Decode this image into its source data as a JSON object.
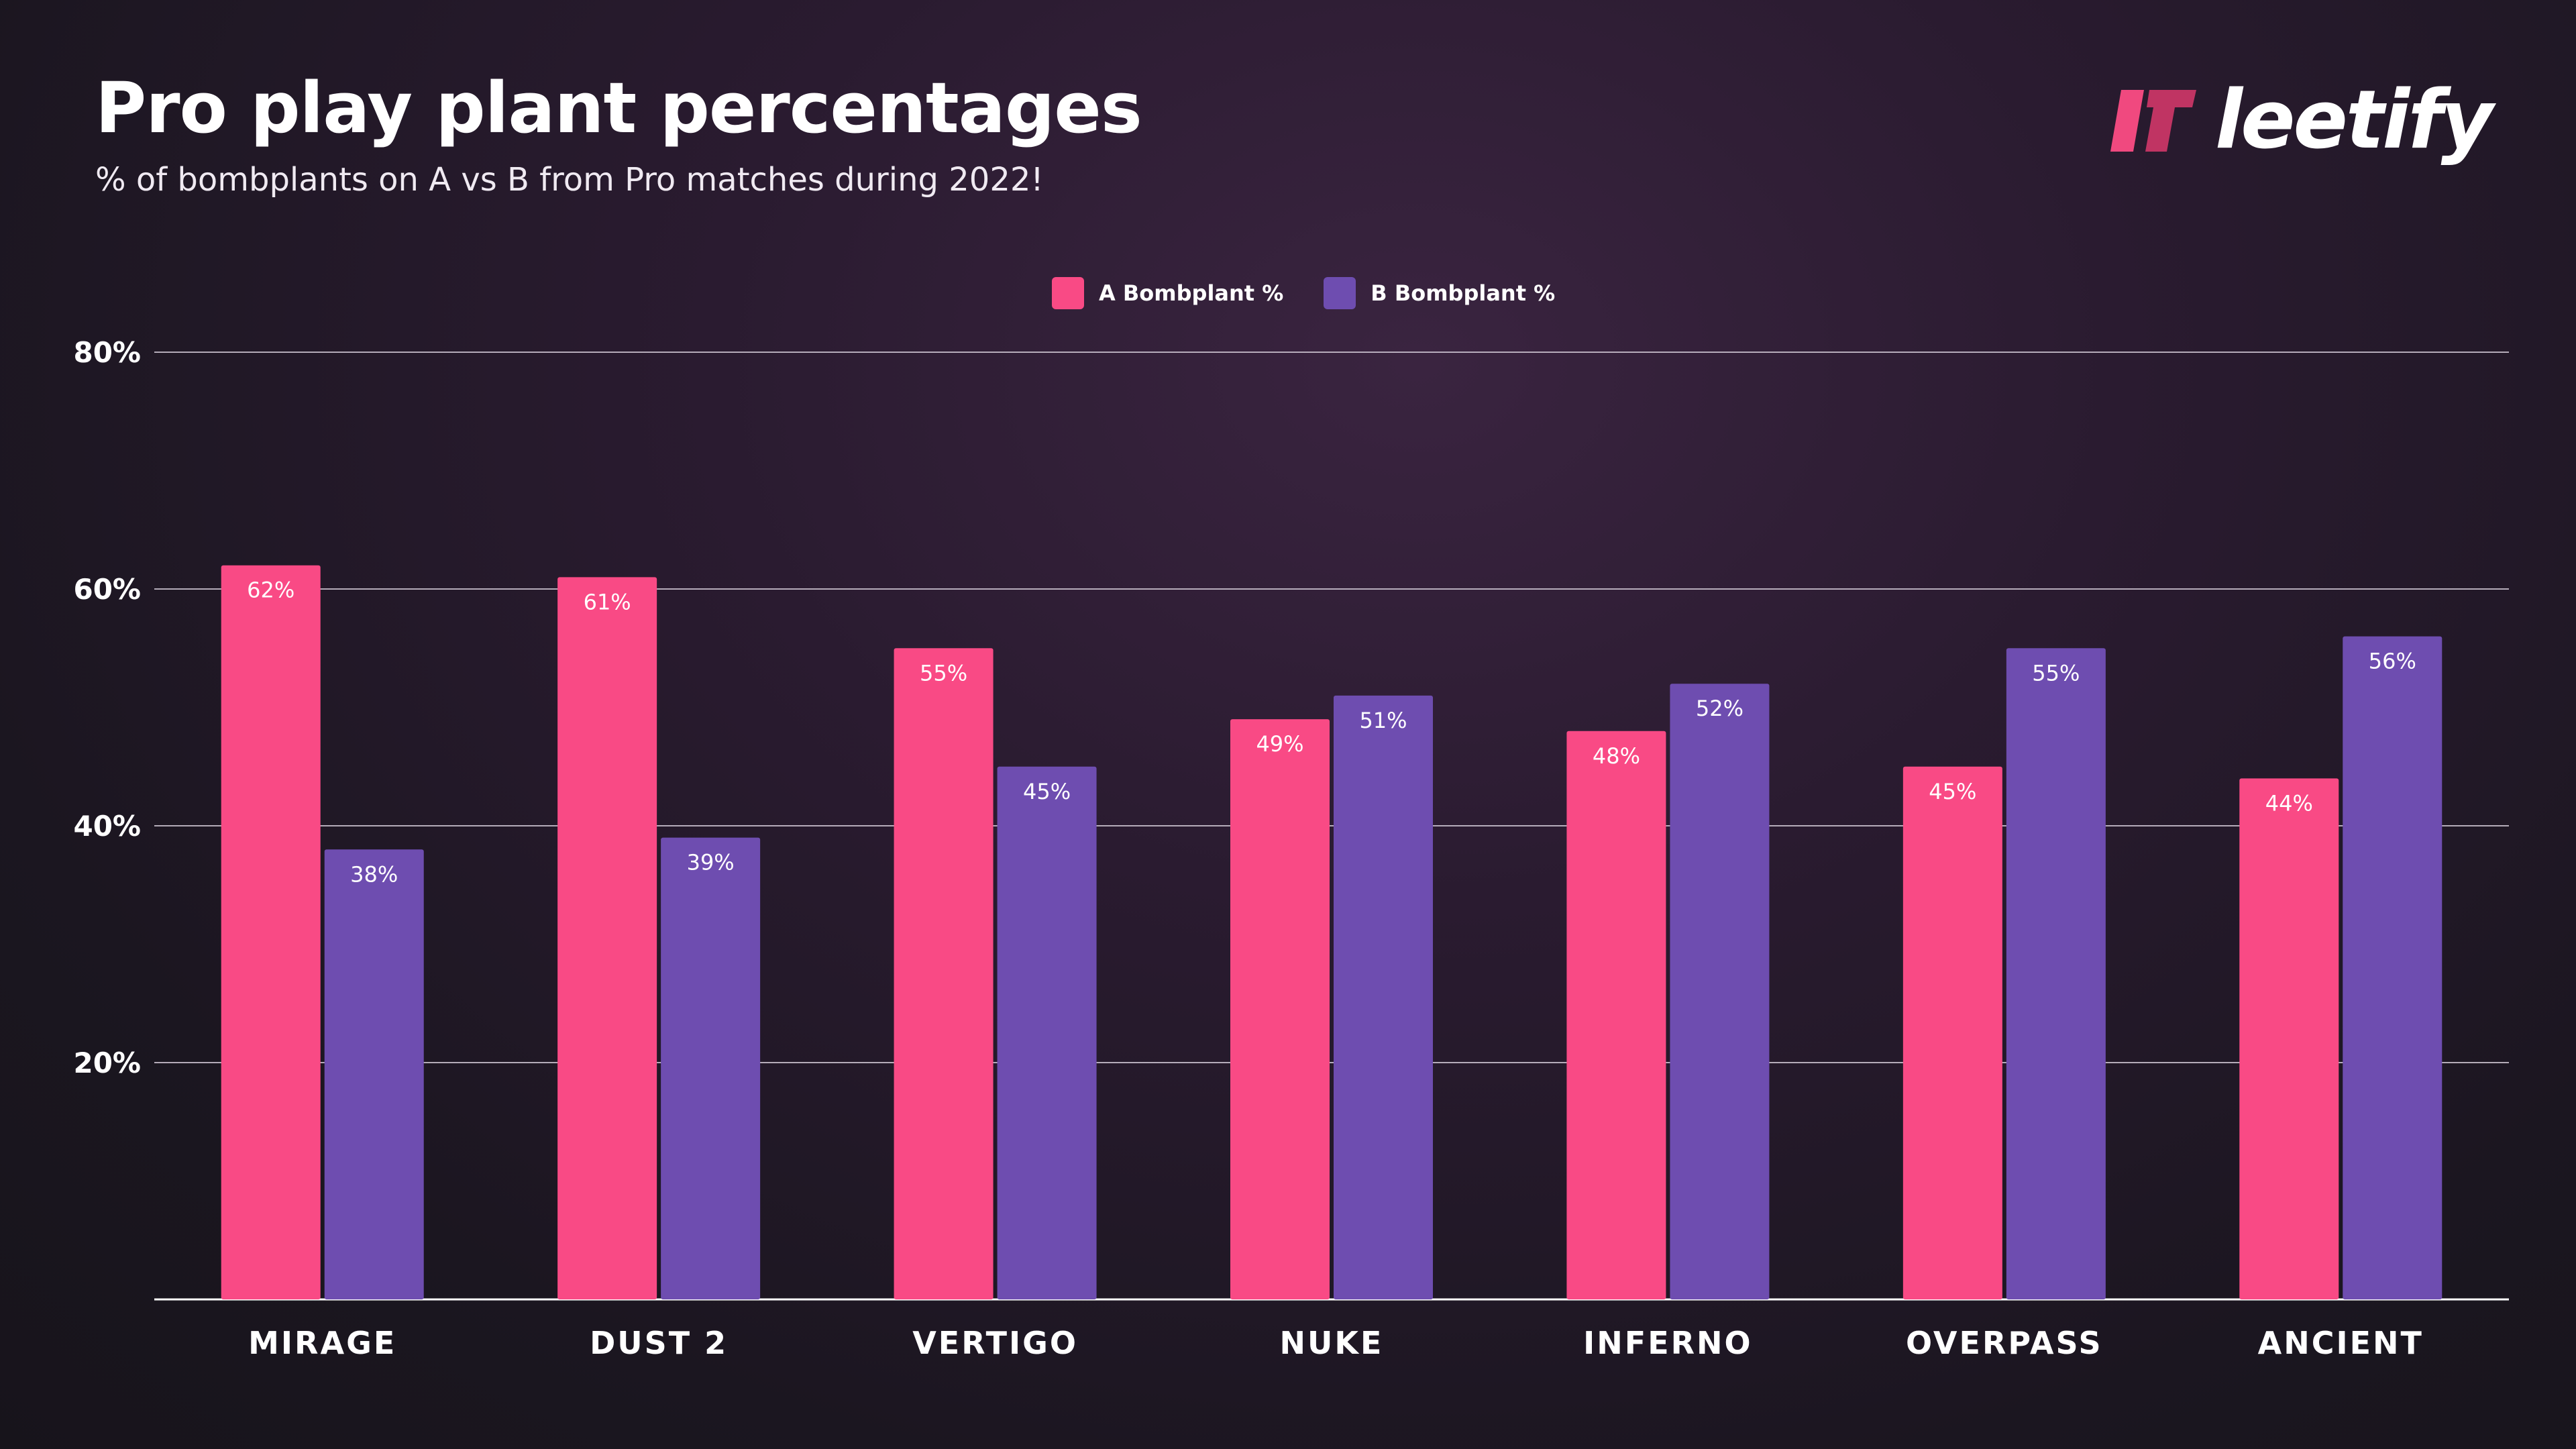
{
  "header": {
    "title": "Pro play plant percentages",
    "subtitle": "% of bombplants on A vs B from Pro matches during 2022!"
  },
  "logo": {
    "text": "leetify",
    "icon": "leetify-logo-icon"
  },
  "colors": {
    "series_a": "#f94a85",
    "series_b": "#6e4db0",
    "logo_light": "#f0497f",
    "logo_dark": "#c03463",
    "grid": "#cfc6d3",
    "axis": "#ffffff"
  },
  "chart_data": {
    "type": "bar",
    "title": "Pro play plant percentages",
    "subtitle": "% of bombplants on A vs B from Pro matches during 2022!",
    "categories": [
      "MIRAGE",
      "DUST 2",
      "VERTIGO",
      "NUKE",
      "INFERNO",
      "OVERPASS",
      "ANCIENT"
    ],
    "series": [
      {
        "name": "A Bombplant %",
        "values": [
          62,
          61,
          55,
          49,
          48,
          45,
          44
        ],
        "labels": [
          "62%",
          "61%",
          "55%",
          "49%",
          "48%",
          "45%",
          "44%"
        ]
      },
      {
        "name": "B Bombplant %",
        "values": [
          38,
          39,
          45,
          51,
          52,
          55,
          56
        ],
        "labels": [
          "38%",
          "39%",
          "45%",
          "51%",
          "52%",
          "55%",
          "56%"
        ]
      }
    ],
    "ylim": [
      0,
      80
    ],
    "yticks": [
      20,
      40,
      60,
      80
    ],
    "ytick_labels": [
      "20%",
      "40%",
      "60%",
      "80%"
    ],
    "xlabel": "",
    "ylabel": "",
    "grid": true,
    "legend": "top-center"
  }
}
